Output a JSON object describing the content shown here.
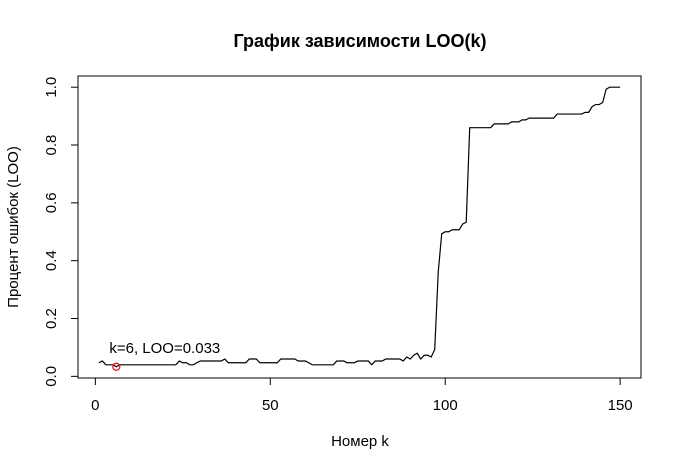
{
  "chart_data": {
    "type": "line",
    "title": "График зависимости LOO(k)",
    "xlabel": "Номер k",
    "ylabel": "Процент ошибок (LOO)",
    "x": [
      1,
      2,
      3,
      4,
      5,
      6,
      7,
      8,
      9,
      10,
      11,
      12,
      13,
      14,
      15,
      16,
      17,
      18,
      19,
      20,
      21,
      22,
      23,
      24,
      25,
      26,
      27,
      28,
      29,
      30,
      31,
      32,
      33,
      34,
      35,
      36,
      37,
      38,
      39,
      40,
      41,
      42,
      43,
      44,
      45,
      46,
      47,
      48,
      49,
      50,
      51,
      52,
      53,
      54,
      55,
      56,
      57,
      58,
      59,
      60,
      61,
      62,
      63,
      64,
      65,
      66,
      67,
      68,
      69,
      70,
      71,
      72,
      73,
      74,
      75,
      76,
      77,
      78,
      79,
      80,
      81,
      82,
      83,
      84,
      85,
      86,
      87,
      88,
      89,
      90,
      91,
      92,
      93,
      94,
      95,
      96,
      97,
      98,
      99,
      100,
      101,
      102,
      103,
      104,
      105,
      106,
      107,
      108,
      109,
      110,
      111,
      112,
      113,
      114,
      115,
      116,
      117,
      118,
      119,
      120,
      121,
      122,
      123,
      124,
      125,
      126,
      127,
      128,
      129,
      130,
      131,
      132,
      133,
      134,
      135,
      136,
      137,
      138,
      139,
      140,
      141,
      142,
      143,
      144,
      145,
      146,
      147,
      148,
      149,
      150
    ],
    "series": [
      {
        "color": "#000000",
        "values": [
          0.047,
          0.053,
          0.04,
          0.04,
          0.04,
          0.033,
          0.04,
          0.04,
          0.04,
          0.04,
          0.04,
          0.04,
          0.04,
          0.04,
          0.04,
          0.04,
          0.04,
          0.04,
          0.04,
          0.04,
          0.04,
          0.04,
          0.04,
          0.053,
          0.047,
          0.047,
          0.04,
          0.04,
          0.047,
          0.053,
          0.053,
          0.053,
          0.053,
          0.053,
          0.053,
          0.053,
          0.06,
          0.047,
          0.047,
          0.047,
          0.047,
          0.047,
          0.047,
          0.06,
          0.06,
          0.06,
          0.047,
          0.047,
          0.047,
          0.047,
          0.047,
          0.047,
          0.06,
          0.06,
          0.06,
          0.06,
          0.06,
          0.053,
          0.053,
          0.053,
          0.047,
          0.04,
          0.04,
          0.04,
          0.04,
          0.04,
          0.04,
          0.04,
          0.053,
          0.053,
          0.053,
          0.047,
          0.047,
          0.047,
          0.053,
          0.053,
          0.053,
          0.053,
          0.04,
          0.053,
          0.053,
          0.053,
          0.06,
          0.06,
          0.06,
          0.06,
          0.06,
          0.053,
          0.067,
          0.06,
          0.073,
          0.08,
          0.06,
          0.073,
          0.073,
          0.067,
          0.093,
          0.36,
          0.493,
          0.5,
          0.5,
          0.507,
          0.507,
          0.507,
          0.527,
          0.533,
          0.86,
          0.86,
          0.86,
          0.86,
          0.86,
          0.86,
          0.86,
          0.873,
          0.873,
          0.873,
          0.873,
          0.873,
          0.88,
          0.88,
          0.88,
          0.887,
          0.887,
          0.893,
          0.893,
          0.893,
          0.893,
          0.893,
          0.893,
          0.893,
          0.893,
          0.907,
          0.907,
          0.907,
          0.907,
          0.907,
          0.907,
          0.907,
          0.907,
          0.913,
          0.913,
          0.933,
          0.94,
          0.94,
          0.947,
          0.993,
          1.0,
          1.0,
          1.0,
          1.0
        ]
      }
    ],
    "highlight": {
      "x": 6,
      "y": 0.033,
      "label": "k=6, LOO=0.033",
      "color": "#e0141e"
    },
    "xlim": [
      -4.96,
      155.96
    ],
    "ylim": [
      -0.0057,
      1.0387
    ],
    "xticks": [
      0,
      50,
      100,
      150
    ],
    "yticks": [
      {
        "value": 0,
        "label": "0.0"
      },
      0.2,
      0.4,
      0.6,
      0.8,
      {
        "value": 1,
        "label": "1.0"
      }
    ]
  }
}
